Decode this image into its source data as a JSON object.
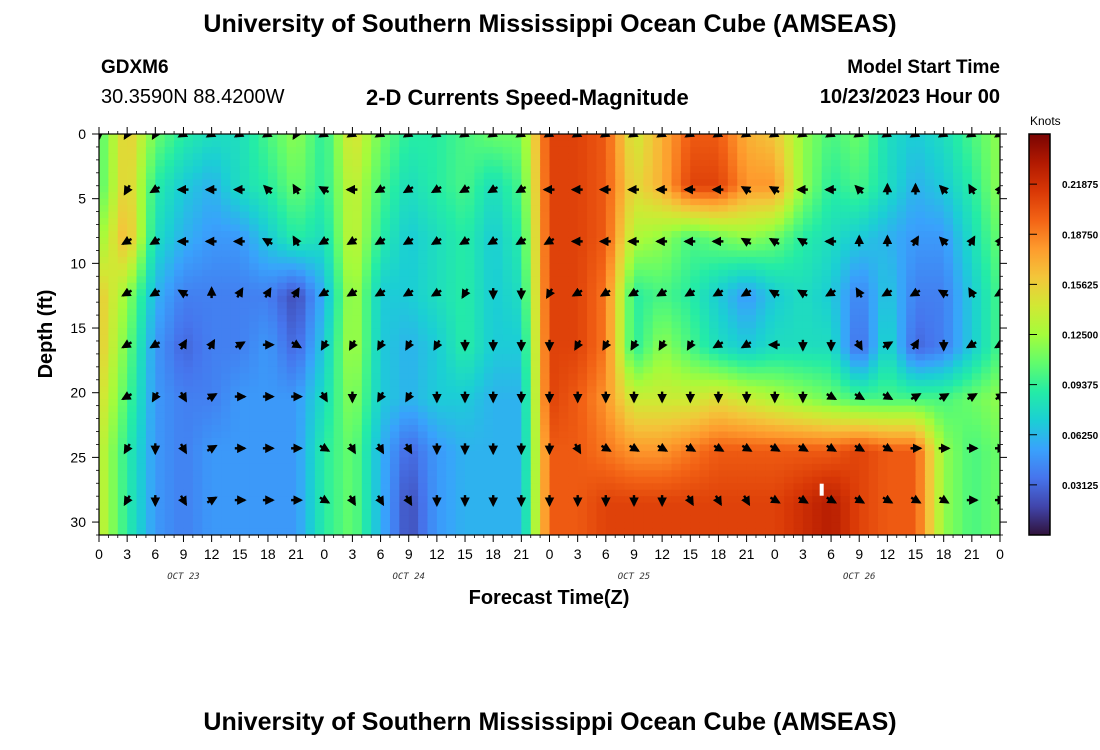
{
  "page": {
    "title_top": "University of Southern Mississippi Ocean Cube (AMSEAS)",
    "title_bottom": "University of Southern Mississippi Ocean Cube (AMSEAS)",
    "station_id": "GDXM6",
    "station_coords": "30.3590N  88.4200W",
    "subtitle": "2-D Currents Speed-Magnitude",
    "model_start_label": "Model Start Time",
    "model_start_value": "10/23/2023 Hour 00"
  },
  "chart_data": {
    "type": "heatmap",
    "title": "2-D Currents Speed-Magnitude",
    "xlabel": "Forecast Time(Z)",
    "ylabel": "Depth (ft)",
    "x_tick_labels": [
      "0",
      "3",
      "6",
      "9",
      "12",
      "15",
      "18",
      "21",
      "0",
      "3",
      "6",
      "9",
      "12",
      "15",
      "18",
      "21",
      "0",
      "3",
      "6",
      "9",
      "12",
      "15",
      "18",
      "21",
      "0",
      "3",
      "6",
      "9",
      "12",
      "15",
      "18",
      "21",
      "0"
    ],
    "x_date_labels": [
      "OCT 23",
      "OCT 24",
      "OCT 25",
      "OCT 26"
    ],
    "xlim_hours": [
      0,
      96
    ],
    "y_ticks": [
      0,
      5,
      10,
      15,
      20,
      25,
      30
    ],
    "ylim_ft": [
      0,
      31
    ],
    "y_inverted": true,
    "colorbar": {
      "units": "Knots",
      "ticks": [
        "0.03125",
        "0.06250",
        "0.09375",
        "0.12500",
        "0.15625",
        "0.18750",
        "0.21875"
      ],
      "range": [
        0,
        0.25
      ],
      "colors": [
        "#30123b",
        "#4145ab",
        "#4675ed",
        "#39a2fc",
        "#1bcfd4",
        "#24eca6",
        "#61fc6c",
        "#a4fc3b",
        "#d1e834",
        "#f3c63a",
        "#fe9b2d",
        "#f36315",
        "#d93806",
        "#b11901",
        "#7a0403"
      ]
    },
    "speed_grid": {
      "depths_ft": [
        0,
        4,
        8,
        12.5,
        16.5,
        20.5,
        24.5,
        28.5
      ],
      "hours": [
        0,
        3,
        6,
        9,
        12,
        15,
        18,
        21,
        24,
        27,
        30,
        33,
        36,
        39,
        42,
        45,
        48,
        51,
        54,
        57,
        60,
        63,
        66,
        69,
        72,
        75,
        78,
        81,
        84,
        87,
        90,
        93,
        96
      ],
      "values_knots": [
        [
          0.1,
          0.16,
          0.11,
          0.09,
          0.08,
          0.08,
          0.1,
          0.12,
          0.09,
          0.15,
          0.11,
          0.09,
          0.09,
          0.1,
          0.11,
          0.11,
          0.21,
          0.21,
          0.2,
          0.14,
          0.17,
          0.2,
          0.2,
          0.17,
          0.16,
          0.12,
          0.1,
          0.11,
          0.08,
          0.07,
          0.08,
          0.1,
          0.12
        ],
        [
          0.1,
          0.16,
          0.09,
          0.07,
          0.06,
          0.08,
          0.09,
          0.11,
          0.09,
          0.14,
          0.1,
          0.08,
          0.09,
          0.1,
          0.08,
          0.1,
          0.21,
          0.21,
          0.2,
          0.15,
          0.17,
          0.21,
          0.21,
          0.18,
          0.18,
          0.12,
          0.09,
          0.1,
          0.08,
          0.06,
          0.07,
          0.09,
          0.12
        ],
        [
          0.12,
          0.17,
          0.08,
          0.06,
          0.05,
          0.05,
          0.07,
          0.09,
          0.08,
          0.14,
          0.09,
          0.07,
          0.08,
          0.09,
          0.07,
          0.09,
          0.21,
          0.21,
          0.2,
          0.13,
          0.12,
          0.1,
          0.11,
          0.12,
          0.11,
          0.09,
          0.08,
          0.07,
          0.06,
          0.05,
          0.05,
          0.08,
          0.11
        ],
        [
          0.16,
          0.12,
          0.06,
          0.04,
          0.04,
          0.04,
          0.04,
          0.02,
          0.06,
          0.13,
          0.07,
          0.07,
          0.08,
          0.09,
          0.07,
          0.08,
          0.21,
          0.21,
          0.19,
          0.09,
          0.1,
          0.09,
          0.07,
          0.05,
          0.07,
          0.08,
          0.07,
          0.04,
          0.07,
          0.04,
          0.04,
          0.07,
          0.1
        ],
        [
          0.16,
          0.11,
          0.05,
          0.03,
          0.04,
          0.04,
          0.05,
          0.03,
          0.07,
          0.13,
          0.07,
          0.06,
          0.07,
          0.09,
          0.07,
          0.07,
          0.21,
          0.21,
          0.19,
          0.09,
          0.12,
          0.1,
          0.08,
          0.07,
          0.08,
          0.08,
          0.08,
          0.03,
          0.08,
          0.03,
          0.04,
          0.07,
          0.1
        ],
        [
          0.15,
          0.1,
          0.05,
          0.04,
          0.04,
          0.05,
          0.05,
          0.05,
          0.08,
          0.12,
          0.07,
          0.06,
          0.07,
          0.07,
          0.06,
          0.06,
          0.21,
          0.2,
          0.18,
          0.14,
          0.14,
          0.14,
          0.15,
          0.14,
          0.13,
          0.12,
          0.11,
          0.1,
          0.1,
          0.1,
          0.1,
          0.11,
          0.12
        ],
        [
          0.14,
          0.09,
          0.05,
          0.04,
          0.05,
          0.05,
          0.05,
          0.05,
          0.09,
          0.11,
          0.06,
          0.03,
          0.05,
          0.06,
          0.06,
          0.06,
          0.2,
          0.2,
          0.19,
          0.18,
          0.18,
          0.19,
          0.2,
          0.2,
          0.2,
          0.2,
          0.2,
          0.21,
          0.2,
          0.2,
          0.12,
          0.1,
          0.11
        ],
        [
          0.14,
          0.09,
          0.05,
          0.04,
          0.05,
          0.05,
          0.05,
          0.05,
          0.09,
          0.11,
          0.06,
          0.02,
          0.05,
          0.06,
          0.06,
          0.06,
          0.2,
          0.2,
          0.21,
          0.21,
          0.21,
          0.21,
          0.21,
          0.21,
          0.21,
          0.22,
          0.23,
          0.21,
          0.2,
          0.2,
          0.12,
          0.1,
          0.11
        ]
      ]
    },
    "vector_rows": [
      {
        "depth_ft": 0,
        "hours": [
          0,
          3,
          6,
          9,
          12,
          15,
          18,
          21,
          24,
          27,
          30,
          33,
          36,
          39,
          42,
          45,
          48,
          51,
          54,
          57,
          60,
          63,
          66,
          69,
          72,
          75,
          78,
          81,
          84,
          87,
          90,
          93,
          96
        ],
        "directions_deg": [
          180,
          210,
          210,
          240,
          240,
          240,
          240,
          210,
          240,
          240,
          240,
          240,
          240,
          240,
          240,
          240,
          240,
          240,
          240,
          240,
          240,
          240,
          240,
          240,
          240,
          240,
          240,
          240,
          240,
          240,
          240,
          240,
          240
        ]
      },
      {
        "depth_ft": 4.3,
        "hours": [
          3,
          6,
          9,
          12,
          15,
          18,
          21,
          24,
          27,
          30,
          33,
          36,
          39,
          42,
          45,
          48,
          51,
          54,
          57,
          60,
          63,
          66,
          69,
          72,
          75,
          78,
          81,
          84,
          87,
          90,
          93,
          96
        ],
        "directions_deg": [
          210,
          240,
          270,
          270,
          270,
          315,
          330,
          300,
          270,
          240,
          240,
          240,
          240,
          240,
          240,
          270,
          270,
          270,
          270,
          270,
          270,
          270,
          300,
          300,
          270,
          270,
          315,
          0,
          0,
          315,
          330,
          30
        ]
      },
      {
        "depth_ft": 8.3,
        "hours": [
          3,
          6,
          9,
          12,
          15,
          18,
          21,
          24,
          27,
          30,
          33,
          36,
          39,
          42,
          45,
          48,
          51,
          54,
          57,
          60,
          63,
          66,
          69,
          72,
          75,
          78,
          81,
          84,
          87,
          90,
          93,
          96
        ],
        "directions_deg": [
          240,
          240,
          270,
          270,
          270,
          300,
          330,
          240,
          240,
          240,
          240,
          240,
          240,
          240,
          240,
          240,
          270,
          270,
          270,
          270,
          270,
          270,
          300,
          300,
          300,
          270,
          0,
          0,
          30,
          315,
          30,
          30
        ]
      },
      {
        "depth_ft": 12.3,
        "hours": [
          3,
          6,
          9,
          12,
          15,
          18,
          21,
          24,
          27,
          30,
          33,
          36,
          39,
          42,
          45,
          48,
          51,
          54,
          57,
          60,
          63,
          66,
          69,
          72,
          75,
          78,
          81,
          84,
          87,
          90,
          93,
          96
        ],
        "directions_deg": [
          240,
          240,
          300,
          0,
          30,
          30,
          30,
          240,
          240,
          240,
          240,
          240,
          210,
          180,
          180,
          210,
          240,
          240,
          240,
          240,
          240,
          240,
          240,
          300,
          300,
          240,
          330,
          240,
          240,
          300,
          330,
          240
        ]
      },
      {
        "depth_ft": 16.3,
        "hours": [
          3,
          6,
          9,
          12,
          15,
          18,
          21,
          24,
          27,
          30,
          33,
          36,
          39,
          42,
          45,
          48,
          51,
          54,
          57,
          60,
          63,
          66,
          69,
          72,
          75,
          78,
          81,
          84,
          87,
          90,
          93,
          96
        ],
        "directions_deg": [
          240,
          240,
          30,
          30,
          60,
          90,
          120,
          210,
          210,
          210,
          210,
          210,
          180,
          180,
          180,
          180,
          210,
          210,
          210,
          210,
          210,
          240,
          240,
          270,
          180,
          180,
          150,
          60,
          30,
          180,
          240,
          240
        ]
      },
      {
        "depth_ft": 20.3,
        "hours": [
          3,
          6,
          9,
          12,
          15,
          18,
          21,
          24,
          27,
          30,
          33,
          36,
          39,
          42,
          45,
          48,
          51,
          54,
          57,
          60,
          63,
          66,
          69,
          72,
          75,
          78,
          81,
          84,
          87,
          90,
          93,
          96
        ],
        "directions_deg": [
          240,
          210,
          150,
          60,
          90,
          90,
          90,
          150,
          180,
          210,
          210,
          180,
          180,
          180,
          180,
          180,
          180,
          180,
          180,
          180,
          180,
          180,
          180,
          180,
          180,
          120,
          120,
          120,
          60,
          60,
          60,
          60
        ]
      },
      {
        "depth_ft": 24.3,
        "hours": [
          3,
          6,
          9,
          12,
          15,
          18,
          21,
          24,
          27,
          30,
          33,
          36,
          39,
          42,
          45,
          48,
          51,
          54,
          57,
          60,
          63,
          66,
          69,
          72,
          75,
          78,
          81,
          84,
          87,
          90,
          93,
          96
        ],
        "directions_deg": [
          210,
          180,
          150,
          60,
          90,
          90,
          90,
          120,
          150,
          150,
          150,
          180,
          180,
          180,
          180,
          180,
          150,
          120,
          120,
          120,
          120,
          120,
          120,
          120,
          120,
          120,
          120,
          120,
          90,
          90,
          90,
          90
        ]
      },
      {
        "depth_ft": 28.3,
        "hours": [
          3,
          6,
          9,
          12,
          15,
          18,
          21,
          24,
          27,
          30,
          33,
          36,
          39,
          42,
          45,
          48,
          51,
          54,
          57,
          60,
          63,
          66,
          69,
          72,
          75,
          78,
          81,
          84,
          87,
          90,
          93,
          96
        ],
        "directions_deg": [
          210,
          180,
          150,
          60,
          90,
          90,
          90,
          120,
          150,
          150,
          150,
          180,
          180,
          180,
          180,
          180,
          180,
          180,
          180,
          180,
          150,
          150,
          150,
          120,
          120,
          120,
          120,
          120,
          120,
          120,
          90,
          90
        ]
      }
    ],
    "marker": {
      "hour": 77,
      "depth_ft": 27.5,
      "color": "#ffffff"
    }
  }
}
